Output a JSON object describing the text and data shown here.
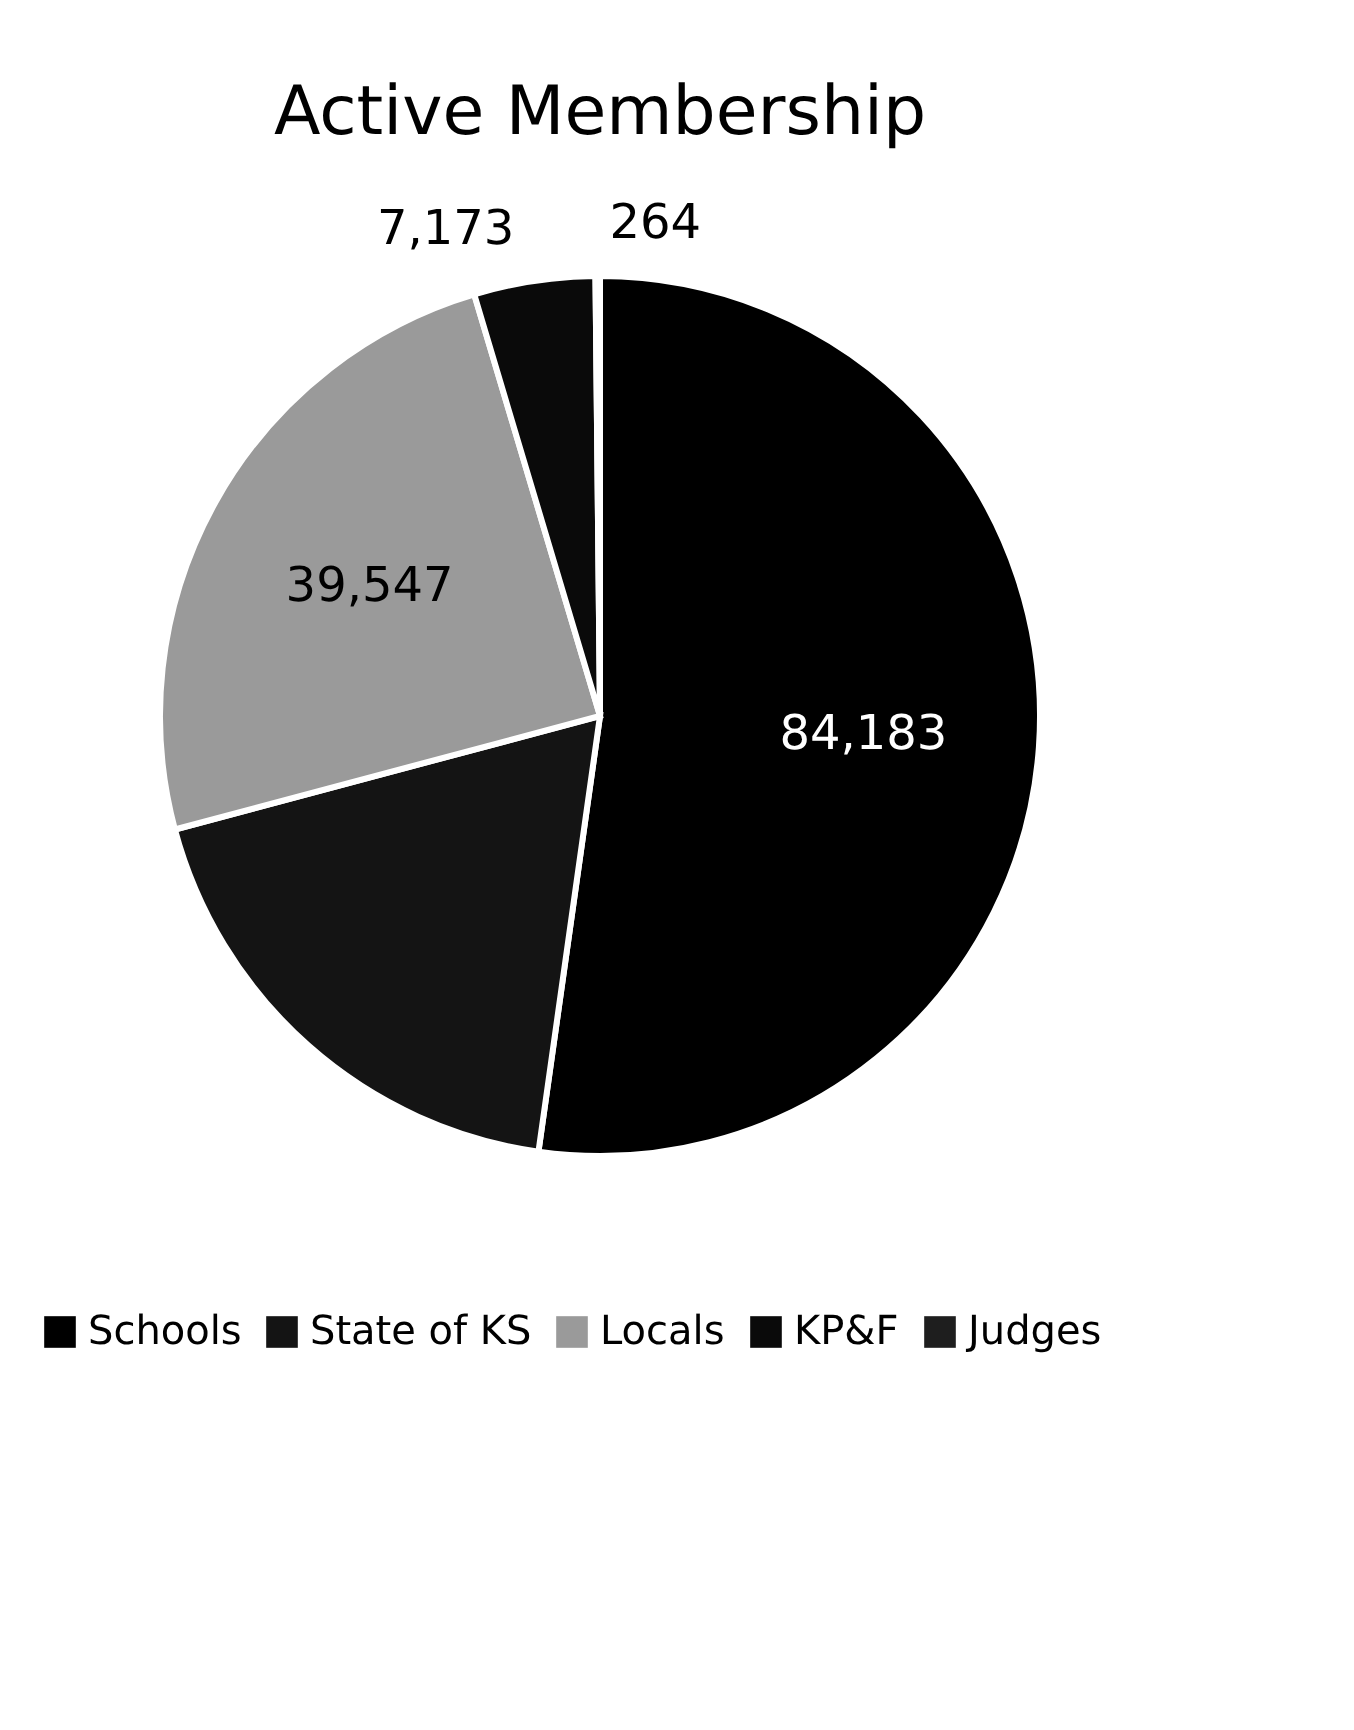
{
  "chart_data": {
    "type": "pie",
    "title": "Active Membership",
    "categories": [
      "Schools",
      "State of KS",
      "Locals",
      "KP&F",
      "Judges"
    ],
    "values": [
      84183,
      30000,
      39547,
      7173,
      264
    ],
    "value_labels": [
      "84,183",
      null,
      "39,547",
      "7,173",
      "264"
    ],
    "colors": [
      "#000000",
      "#141414",
      "#9a9a9a",
      "#0a0a0a",
      "#1e1e1e"
    ],
    "legend": "bottom"
  }
}
